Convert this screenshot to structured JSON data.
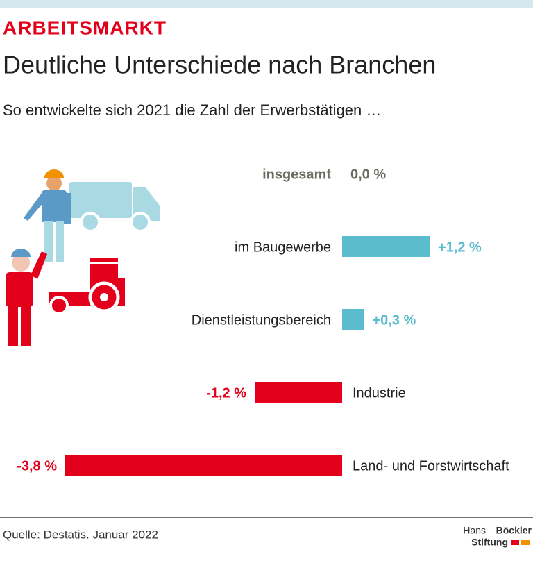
{
  "chart_data": {
    "type": "bar",
    "orientation": "horizontal",
    "kicker": "ARBEITSMARKT",
    "title": "Deutliche Unterschiede nach Branchen",
    "subtitle": "So entwickelte sich 2021 die Zahl der Erwerbstätigen …",
    "categories": [
      "insgesamt",
      "im Baugewerbe",
      "Dienstleistungsbereich",
      "Industrie",
      "Land- und Forstwirtschaft"
    ],
    "values": [
      0.0,
      1.2,
      0.3,
      -1.2,
      -3.8
    ],
    "value_labels": [
      "0,0 %",
      "+1,2 %",
      "+0,3 %",
      "-1,2 %",
      "-3,8 %"
    ],
    "colors": [
      "#6b6b61",
      "#5bbccd",
      "#5bbccd",
      "#e2001a",
      "#e2001a"
    ],
    "source": "Quelle: Destatis. Januar 2022",
    "logo": {
      "line1_light": "Hans",
      "line1_bold": "Böckler",
      "line2": "Stiftung"
    }
  }
}
